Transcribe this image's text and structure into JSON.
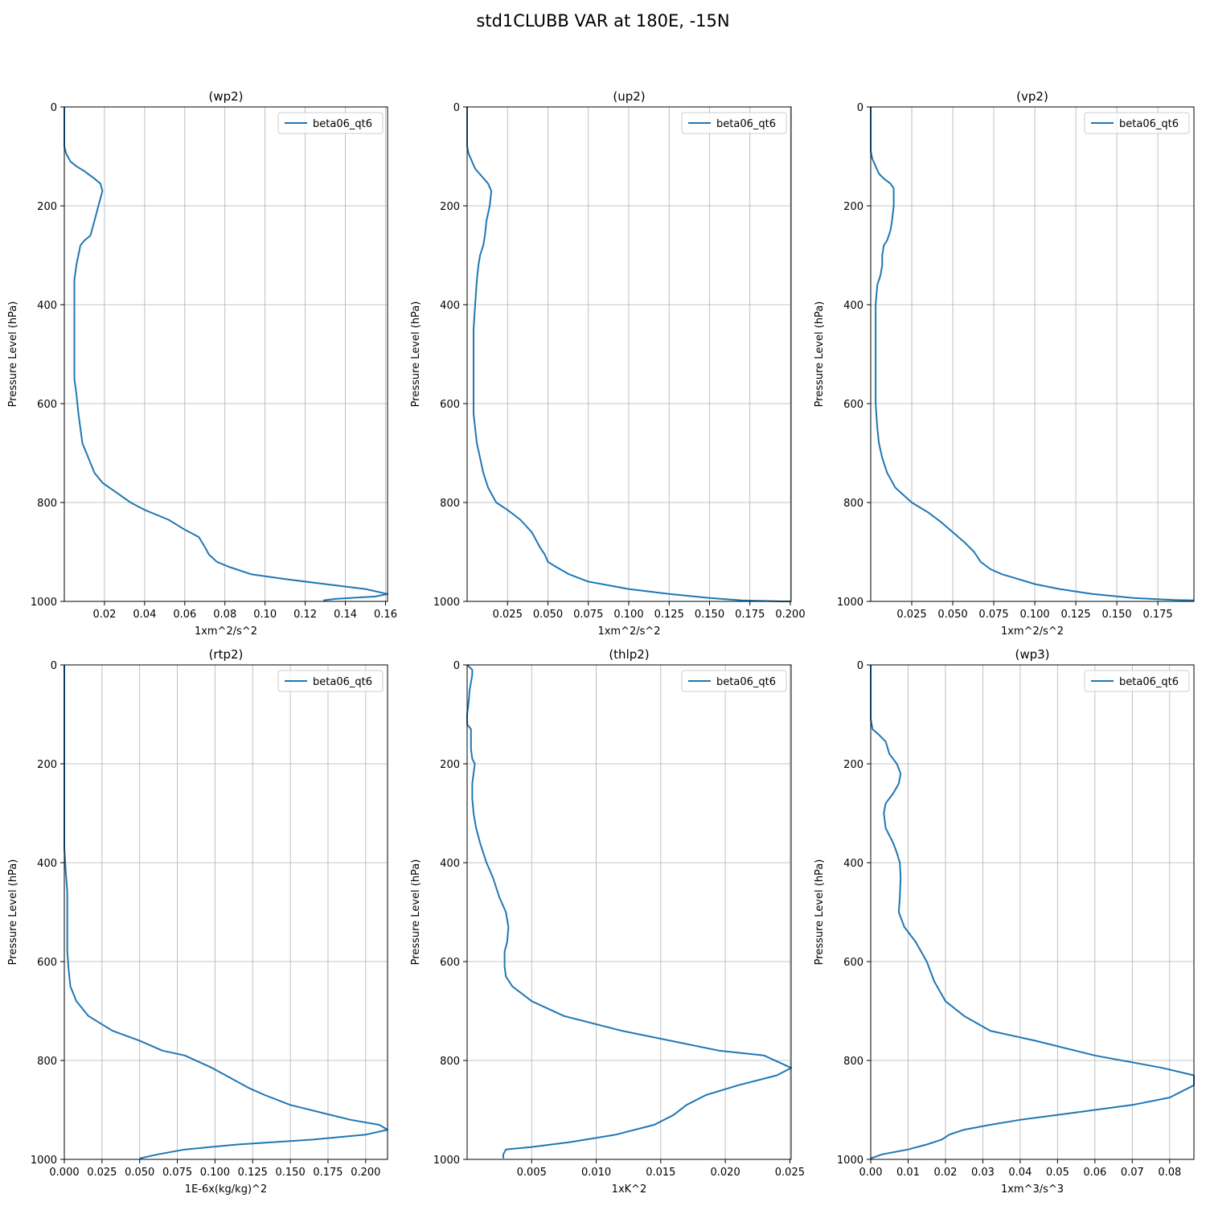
{
  "title": "std1CLUBB VAR at 180E, -15N",
  "colors": {
    "line": "#1f77b4",
    "grid": "#b0b0b0",
    "axis": "#000000"
  },
  "chart_data": [
    {
      "type": "line",
      "title": "(wp2)",
      "xlabel": "1xm^2/s^2",
      "ylabel": "Pressure Level (hPa)",
      "xlim": [
        0.0,
        0.161
      ],
      "ylim": [
        1000,
        0
      ],
      "xticks": [
        0.02,
        0.04,
        0.06,
        0.08,
        0.1,
        0.12,
        0.14,
        0.16
      ],
      "xtick_labels": [
        "0.02",
        "0.04",
        "0.06",
        "0.08",
        "0.10",
        "0.12",
        "0.14",
        "0.16"
      ],
      "yticks": [
        0,
        200,
        400,
        600,
        800,
        1000
      ],
      "ytick_labels": [
        "0",
        "200",
        "400",
        "600",
        "800",
        "1000"
      ],
      "grid": true,
      "legend": "top-right",
      "series": [
        {
          "name": "beta06_qt6",
          "x": [
            0.0,
            0.0,
            0.001,
            0.003,
            0.006,
            0.01,
            0.015,
            0.018,
            0.019,
            0.017,
            0.015,
            0.013,
            0.01,
            0.008,
            0.007,
            0.006,
            0.005,
            0.005,
            0.005,
            0.005,
            0.005,
            0.005,
            0.006,
            0.007,
            0.008,
            0.009,
            0.012,
            0.015,
            0.019,
            0.026,
            0.033,
            0.04,
            0.052,
            0.06,
            0.067,
            0.07,
            0.072,
            0.076,
            0.082,
            0.093,
            0.11,
            0.13,
            0.15,
            0.161,
            0.155,
            0.135,
            0.129
          ],
          "y": [
            0,
            80,
            95,
            110,
            120,
            130,
            145,
            155,
            170,
            200,
            230,
            260,
            270,
            280,
            300,
            320,
            350,
            400,
            450,
            500,
            530,
            550,
            580,
            620,
            650,
            680,
            710,
            740,
            760,
            780,
            800,
            815,
            835,
            855,
            870,
            890,
            905,
            920,
            930,
            945,
            955,
            965,
            975,
            985,
            990,
            995,
            998
          ]
        }
      ]
    },
    {
      "type": "line",
      "title": "(up2)",
      "xlabel": "1xm^2/s^2",
      "ylabel": "Pressure Level (hPa)",
      "xlim": [
        0.0,
        0.2005
      ],
      "ylim": [
        1000,
        0
      ],
      "xticks": [
        0.025,
        0.05,
        0.075,
        0.1,
        0.125,
        0.15,
        0.175,
        0.2
      ],
      "xtick_labels": [
        "0.025",
        "0.050",
        "0.075",
        "0.100",
        "0.125",
        "0.150",
        "0.175",
        "0.200"
      ],
      "yticks": [
        0,
        200,
        400,
        600,
        800,
        1000
      ],
      "ytick_labels": [
        "0",
        "200",
        "400",
        "600",
        "800",
        "1000"
      ],
      "grid": true,
      "legend": "top-right",
      "series": [
        {
          "name": "beta06_qt6",
          "x": [
            0.0,
            0.0,
            0.001,
            0.003,
            0.005,
            0.009,
            0.013,
            0.015,
            0.014,
            0.012,
            0.011,
            0.01,
            0.008,
            0.007,
            0.006,
            0.005,
            0.004,
            0.004,
            0.004,
            0.004,
            0.004,
            0.005,
            0.006,
            0.008,
            0.01,
            0.013,
            0.018,
            0.025,
            0.033,
            0.04,
            0.045,
            0.048,
            0.05,
            0.055,
            0.063,
            0.075,
            0.1,
            0.125,
            0.15,
            0.17,
            0.195,
            0.2
          ],
          "y": [
            0,
            80,
            95,
            110,
            125,
            140,
            155,
            170,
            200,
            230,
            260,
            280,
            300,
            320,
            350,
            400,
            450,
            500,
            550,
            580,
            620,
            650,
            680,
            710,
            740,
            770,
            800,
            815,
            835,
            860,
            890,
            905,
            920,
            930,
            945,
            960,
            975,
            985,
            993,
            998,
            1000,
            1000
          ]
        }
      ]
    },
    {
      "type": "line",
      "title": "(vp2)",
      "xlabel": "1xm^2/s^2",
      "ylabel": "Pressure Level (hPa)",
      "xlim": [
        0.0,
        0.197
      ],
      "ylim": [
        1000,
        0
      ],
      "xticks": [
        0.025,
        0.05,
        0.075,
        0.1,
        0.125,
        0.15,
        0.175
      ],
      "xtick_labels": [
        "0.025",
        "0.050",
        "0.075",
        "0.100",
        "0.125",
        "0.150",
        "0.175"
      ],
      "yticks": [
        0,
        200,
        400,
        600,
        800,
        1000
      ],
      "ytick_labels": [
        "0",
        "200",
        "400",
        "600",
        "800",
        "1000"
      ],
      "grid": true,
      "legend": "top-right",
      "series": [
        {
          "name": "beta06_qt6",
          "x": [
            0.0,
            0.0,
            0.001,
            0.003,
            0.005,
            0.008,
            0.012,
            0.014,
            0.014,
            0.013,
            0.012,
            0.01,
            0.008,
            0.007,
            0.007,
            0.006,
            0.004,
            0.003,
            0.003,
            0.003,
            0.003,
            0.004,
            0.005,
            0.007,
            0.01,
            0.015,
            0.025,
            0.035,
            0.043,
            0.05,
            0.057,
            0.063,
            0.067,
            0.073,
            0.08,
            0.09,
            0.1,
            0.115,
            0.135,
            0.16,
            0.185,
            0.197
          ],
          "y": [
            0,
            90,
            105,
            120,
            135,
            145,
            155,
            165,
            200,
            230,
            250,
            270,
            280,
            300,
            320,
            340,
            360,
            400,
            500,
            560,
            600,
            650,
            680,
            710,
            740,
            770,
            800,
            820,
            840,
            860,
            880,
            900,
            920,
            935,
            945,
            955,
            965,
            975,
            985,
            993,
            997,
            998
          ]
        }
      ]
    },
    {
      "type": "line",
      "title": "(rtp2)",
      "xlabel": "1E-6x(kg/kg)^2",
      "ylabel": "Pressure Level (hPa)",
      "xlim": [
        0.0,
        0.2145
      ],
      "ylim": [
        1000,
        0
      ],
      "xticks": [
        0.0,
        0.025,
        0.05,
        0.075,
        0.1,
        0.125,
        0.15,
        0.175,
        0.2
      ],
      "xtick_labels": [
        "0.000",
        "0.025",
        "0.050",
        "0.075",
        "0.100",
        "0.125",
        "0.150",
        "0.175",
        "0.200"
      ],
      "yticks": [
        0,
        200,
        400,
        600,
        800,
        1000
      ],
      "ytick_labels": [
        "0",
        "200",
        "400",
        "600",
        "800",
        "1000"
      ],
      "grid": true,
      "legend": "top-right",
      "series": [
        {
          "name": "beta06_qt6",
          "x": [
            0.0,
            0.0,
            0.0,
            0.001,
            0.002,
            0.002,
            0.002,
            0.002,
            0.003,
            0.004,
            0.008,
            0.016,
            0.032,
            0.05,
            0.065,
            0.08,
            0.098,
            0.11,
            0.122,
            0.133,
            0.15,
            0.17,
            0.19,
            0.209,
            0.2145,
            0.2,
            0.165,
            0.115,
            0.08,
            0.062,
            0.05
          ],
          "y": [
            0,
            300,
            370,
            420,
            460,
            500,
            540,
            580,
            620,
            650,
            680,
            710,
            740,
            760,
            780,
            790,
            815,
            835,
            855,
            870,
            890,
            905,
            920,
            930,
            940,
            950,
            960,
            970,
            980,
            990,
            998
          ]
        }
      ]
    },
    {
      "type": "line",
      "title": "(thlp2)",
      "xlabel": "1xK^2",
      "ylabel": "Pressure Level (hPa)",
      "xlim": [
        0.0,
        0.0251
      ],
      "ylim": [
        1000,
        0
      ],
      "xticks": [
        0.005,
        0.01,
        0.015,
        0.02,
        0.025
      ],
      "xtick_labels": [
        "0.005",
        "0.010",
        "0.015",
        "0.020",
        "0.025"
      ],
      "yticks": [
        0,
        200,
        400,
        600,
        800,
        1000
      ],
      "ytick_labels": [
        "0",
        "200",
        "400",
        "600",
        "800",
        "1000"
      ],
      "grid": true,
      "legend": "top-right",
      "series": [
        {
          "name": "beta06_qt6",
          "x": [
            0.0,
            0.0004,
            0.0004,
            0.0002,
            0.0001,
            0.0,
            0.0,
            0.0003,
            0.0003,
            0.0003,
            0.0004,
            0.0006,
            0.0005,
            0.0004,
            0.0004,
            0.0004,
            0.0005,
            0.0007,
            0.001,
            0.0015,
            0.002,
            0.0025,
            0.003,
            0.0032,
            0.0031,
            0.0029,
            0.0029,
            0.003,
            0.0035,
            0.005,
            0.0075,
            0.012,
            0.0195,
            0.023,
            0.0251,
            0.024,
            0.021,
            0.0185,
            0.017,
            0.016,
            0.0145,
            0.0115,
            0.008,
            0.005,
            0.003,
            0.0028,
            0.0028
          ],
          "y": [
            0,
            10,
            20,
            50,
            80,
            100,
            120,
            130,
            150,
            170,
            190,
            200,
            220,
            240,
            250,
            270,
            300,
            330,
            360,
            400,
            430,
            470,
            500,
            530,
            560,
            580,
            610,
            630,
            650,
            680,
            710,
            740,
            780,
            790,
            815,
            830,
            850,
            870,
            890,
            910,
            930,
            950,
            965,
            975,
            980,
            990,
            998
          ]
        }
      ]
    },
    {
      "type": "line",
      "title": "(wp3)",
      "xlabel": "1xm^3/s^3",
      "ylabel": "Pressure Level (hPa)",
      "xlim": [
        0.0,
        0.0865
      ],
      "ylim": [
        1000,
        0
      ],
      "xticks": [
        0.0,
        0.01,
        0.02,
        0.03,
        0.04,
        0.05,
        0.06,
        0.07,
        0.08
      ],
      "xtick_labels": [
        "0.00",
        "0.01",
        "0.02",
        "0.03",
        "0.04",
        "0.05",
        "0.06",
        "0.07",
        "0.08"
      ],
      "yticks": [
        0,
        200,
        400,
        600,
        800,
        1000
      ],
      "ytick_labels": [
        "0",
        "200",
        "400",
        "600",
        "800",
        "1000"
      ],
      "grid": true,
      "legend": "top-right",
      "series": [
        {
          "name": "beta06_qt6",
          "x": [
            0.0,
            0.0,
            0.0005,
            0.002,
            0.004,
            0.005,
            0.007,
            0.008,
            0.0075,
            0.006,
            0.004,
            0.0035,
            0.004,
            0.006,
            0.007,
            0.0078,
            0.008,
            0.0078,
            0.0075,
            0.009,
            0.012,
            0.015,
            0.017,
            0.02,
            0.025,
            0.032,
            0.044,
            0.06,
            0.078,
            0.0865,
            0.0865,
            0.08,
            0.07,
            0.055,
            0.04,
            0.032,
            0.025,
            0.021,
            0.019,
            0.015,
            0.01,
            0.003,
            0.0
          ],
          "y": [
            0,
            110,
            130,
            140,
            155,
            180,
            200,
            220,
            240,
            260,
            280,
            300,
            330,
            360,
            380,
            400,
            430,
            470,
            500,
            530,
            560,
            600,
            640,
            680,
            710,
            740,
            760,
            790,
            815,
            830,
            850,
            875,
            890,
            905,
            920,
            930,
            940,
            950,
            960,
            970,
            980,
            990,
            998
          ]
        }
      ]
    }
  ]
}
